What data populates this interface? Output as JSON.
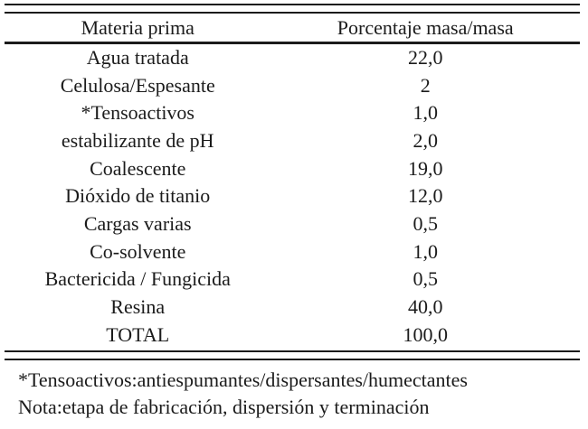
{
  "table": {
    "columns": [
      "Materia prima",
      "Porcentaje masa/masa"
    ],
    "rows": [
      {
        "materia": "Agua tratada",
        "porcentaje": "22,0"
      },
      {
        "materia": "Celulosa/Espesante",
        "porcentaje": "2"
      },
      {
        "materia": "*Tensoactivos",
        "porcentaje": "1,0"
      },
      {
        "materia": "estabilizante de pH",
        "porcentaje": "2,0"
      },
      {
        "materia": "Coalescente",
        "porcentaje": "19,0"
      },
      {
        "materia": "Dióxido de titanio",
        "porcentaje": "12,0"
      },
      {
        "materia": "Cargas varias",
        "porcentaje": "0,5"
      },
      {
        "materia": "Co-solvente",
        "porcentaje": "1,0"
      },
      {
        "materia": "Bactericida / Fungicida",
        "porcentaje": "0,5"
      },
      {
        "materia": "Resina",
        "porcentaje": "40,0"
      },
      {
        "materia": "TOTAL",
        "porcentaje": "100,0"
      }
    ],
    "footnotes": [
      "*Tensoactivos:antiespumantes/dispersantes/humectantes",
      "Nota:etapa de fabricación, dispersión y terminación"
    ],
    "colors": {
      "text": "#1b1b1b",
      "rule": "#1b1b1b",
      "background": "#ffffff"
    }
  }
}
